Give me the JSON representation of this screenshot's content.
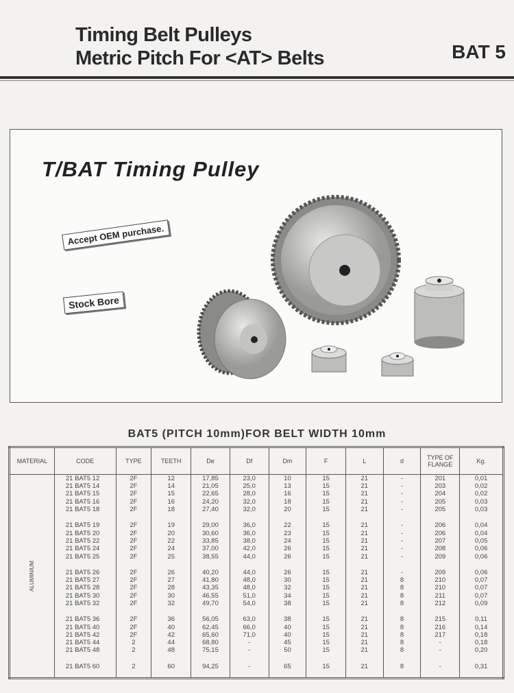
{
  "header": {
    "title_line1": "Timing Belt Pulleys",
    "title_line2": "Metric Pitch For <AT> Belts",
    "code": "BAT 5"
  },
  "photo": {
    "title": "T/BAT Timing Pulley",
    "tag_oem": "Accept OEM purchase.",
    "tag_bore": "Stock Bore"
  },
  "table": {
    "title": "BAT5  (PITCH 10mm)FOR  BELT  WIDTH  10mm",
    "headers": [
      "MATERIAL",
      "CODE",
      "TYPE",
      "TEETH",
      "De",
      "Df",
      "Dm",
      "F",
      "L",
      "d",
      "TYPE OF FLANGE",
      "Kg."
    ],
    "material": "ALUMINIUM",
    "groups": [
      [
        [
          "21 BAT5 12",
          "2F",
          "12",
          "17,85",
          "23,0",
          "10",
          "15",
          "21",
          "-",
          "201",
          "0,01"
        ],
        [
          "21 BAT5 14",
          "2F",
          "14",
          "21,05",
          "25,0",
          "13",
          "15",
          "21",
          "-",
          "203",
          "0,02"
        ],
        [
          "21 BAT5 15",
          "2F",
          "15",
          "22,65",
          "28,0",
          "16",
          "15",
          "21",
          "-",
          "204",
          "0,02"
        ],
        [
          "21 BAT5 16",
          "2F",
          "16",
          "24,20",
          "32,0",
          "18",
          "15",
          "21",
          "-",
          "205",
          "0,03"
        ],
        [
          "21 BAT5 18",
          "2F",
          "18",
          "27,40",
          "32,0",
          "20",
          "15",
          "21",
          "-",
          "205",
          "0,03"
        ]
      ],
      [
        [
          "21 BAT5 19",
          "2F",
          "19",
          "29,00",
          "36,0",
          "22",
          "15",
          "21",
          "-",
          "206",
          "0,04"
        ],
        [
          "21 BAT5 20",
          "2F",
          "20",
          "30,60",
          "36,0",
          "23",
          "15",
          "21",
          "-",
          "206",
          "0,04"
        ],
        [
          "21 BAT5 22",
          "2F",
          "22",
          "33,85",
          "38,0",
          "24",
          "15",
          "21",
          "-",
          "207",
          "0,05"
        ],
        [
          "21 BAT5 24",
          "2F",
          "24",
          "37,00",
          "42,0",
          "26",
          "15",
          "21",
          "-",
          "208",
          "0,06"
        ],
        [
          "21 BAT5 25",
          "2F",
          "25",
          "38,55",
          "44,0",
          "26",
          "15",
          "21",
          "-",
          "209",
          "0,06"
        ]
      ],
      [
        [
          "21 BAT5 26",
          "2F",
          "26",
          "40,20",
          "44,0",
          "26",
          "15",
          "21",
          "-",
          "209",
          "0,06"
        ],
        [
          "21 BAT5 27",
          "2F",
          "27",
          "41,80",
          "48,0",
          "30",
          "15",
          "21",
          "8",
          "210",
          "0,07"
        ],
        [
          "21 BAT5 28",
          "2F",
          "28",
          "43,35",
          "48,0",
          "32",
          "15",
          "21",
          "8",
          "210",
          "0,07"
        ],
        [
          "21 BAT5 30",
          "2F",
          "30",
          "46,55",
          "51,0",
          "34",
          "15",
          "21",
          "8",
          "211",
          "0,07"
        ],
        [
          "21 BAT5 32",
          "2F",
          "32",
          "49,70",
          "54,0",
          "38",
          "15",
          "21",
          "8",
          "212",
          "0,09"
        ]
      ],
      [
        [
          "21 BAT5 36",
          "2F",
          "36",
          "56,05",
          "63,0",
          "38",
          "15",
          "21",
          "8",
          "215",
          "0,11"
        ],
        [
          "21 BAT5 40",
          "2F",
          "40",
          "62,45",
          "66,0",
          "40",
          "15",
          "21",
          "8",
          "216",
          "0,14"
        ],
        [
          "21 BAT5 42",
          "2F",
          "42",
          "65,60",
          "71,0",
          "40",
          "15",
          "21",
          "8",
          "217",
          "0,18"
        ],
        [
          "21 BAT5 44",
          "2",
          "44",
          "68,80",
          "-",
          "45",
          "15",
          "21",
          "8",
          "-",
          "0,18"
        ],
        [
          "21 BAT5 48",
          "2",
          "48",
          "75,15",
          "-",
          "50",
          "15",
          "21",
          "8",
          "-",
          "0,20"
        ]
      ],
      [
        [
          "21 BAT5 60",
          "2",
          "60",
          "94,25",
          "-",
          "65",
          "15",
          "21",
          "8",
          "-",
          "0,31"
        ]
      ]
    ]
  }
}
